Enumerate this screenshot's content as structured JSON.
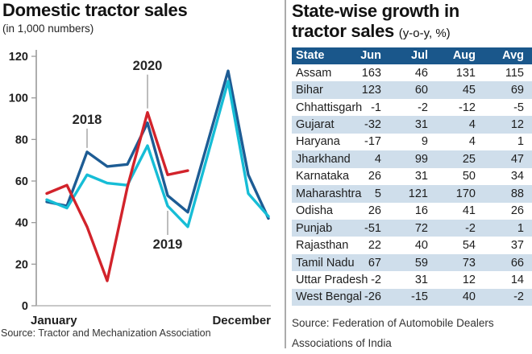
{
  "left_panel": {
    "title": "Domestic tractor sales",
    "subtitle": "(in 1,000 numbers)",
    "source": "Source: Tractor and Mechanization Association"
  },
  "chart_data": {
    "type": "line",
    "title": "Domestic tractor sales",
    "ylabel": "in 1,000 numbers",
    "x": [
      "Jan",
      "Feb",
      "Mar",
      "Apr",
      "May",
      "Jun",
      "Jul",
      "Aug",
      "Sep",
      "Oct",
      "Nov",
      "Dec"
    ],
    "x_axis_labels_shown": [
      "January",
      "December"
    ],
    "ylim": [
      0,
      120
    ],
    "yticks": [
      0,
      20,
      40,
      60,
      80,
      100,
      120
    ],
    "grid": false,
    "legend": "inline-year-labels",
    "series": [
      {
        "name": "2018",
        "color": "#1d5c94",
        "values": [
          50,
          48,
          74,
          67,
          68,
          88,
          53,
          45,
          79,
          113,
          63,
          42
        ]
      },
      {
        "name": "2019",
        "color": "#16bdd6",
        "values": [
          51,
          47,
          63,
          59,
          58,
          77,
          48,
          38,
          73,
          108,
          54,
          43
        ]
      },
      {
        "name": "2020",
        "color": "#d2232b",
        "values": [
          54,
          58,
          38,
          12,
          57,
          93,
          63,
          65
        ]
      }
    ],
    "annotations": [
      {
        "label": "2018",
        "month_index": 2,
        "attach": "above",
        "line_len": 24
      },
      {
        "label": "2020",
        "month_index": 5,
        "attach": "above",
        "line_len": 42
      },
      {
        "label": "2019",
        "month_index": 6,
        "attach": "below",
        "line_len": 30
      }
    ]
  },
  "right_panel": {
    "title_line1": "State-wise growth in",
    "title_line2": "tractor sales ",
    "title_suffix": "(y-o-y, %)",
    "source_line1": "Source: Federation of Automobile Dealers",
    "source_line2": "Associations of India",
    "table": {
      "columns": [
        "State",
        "Jun",
        "Jul",
        "Aug",
        "Avg"
      ],
      "rows": [
        [
          "Assam",
          163,
          46,
          131,
          115
        ],
        [
          "Bihar",
          123,
          60,
          45,
          69
        ],
        [
          "Chhattisgarh",
          -1,
          -2,
          -12,
          -5
        ],
        [
          "Gujarat",
          -32,
          31,
          4,
          12
        ],
        [
          "Haryana",
          -17,
          9,
          4,
          1
        ],
        [
          "Jharkhand",
          4,
          99,
          25,
          47
        ],
        [
          "Karnataka",
          26,
          31,
          50,
          34
        ],
        [
          "Maharashtra",
          5,
          121,
          170,
          88
        ],
        [
          "Odisha",
          26,
          16,
          41,
          26
        ],
        [
          "Punjab",
          -51,
          72,
          -2,
          1
        ],
        [
          "Rajasthan",
          22,
          40,
          54,
          37
        ],
        [
          "Tamil Nadu",
          67,
          59,
          73,
          66
        ],
        [
          "Uttar Pradesh",
          -2,
          31,
          12,
          14
        ],
        [
          "West Bengal",
          -26,
          -15,
          40,
          -2
        ]
      ]
    }
  },
  "colors": {
    "table_header_bg": "#1a578b",
    "table_row_alt": "#cfdeeb",
    "axis": "#9a9a9a",
    "pointer_line": "#999999",
    "divider": "#ababab"
  }
}
